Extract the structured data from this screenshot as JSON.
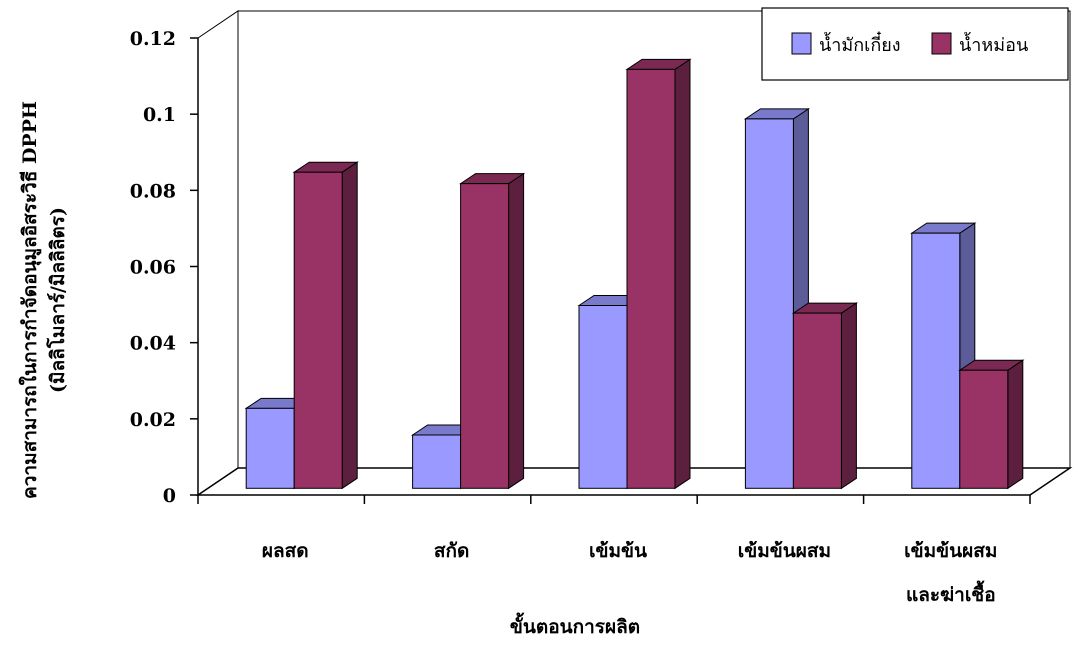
{
  "chart_data": {
    "type": "bar",
    "style": "3d-clustered-column",
    "title": "",
    "xlabel": "ขั้นตอนการผลิต",
    "ylabel": [
      "ความสามารถในการกำจัดอนุมูลอิสระวิธี DPPH",
      "(มิลลิโมลาร์/มิลลิลิตร)"
    ],
    "categories": [
      [
        "ผลสด"
      ],
      [
        "สกัด"
      ],
      [
        "เข้มข้น"
      ],
      [
        "เข้มข้นผสม"
      ],
      [
        "เข้มข้นผสม",
        "และฆ่าเชื้อ"
      ]
    ],
    "series": [
      {
        "name": "น้ำมักเกี๋ยง",
        "color": "#9999ff",
        "values": [
          0.021,
          0.014,
          0.048,
          0.097,
          0.067
        ]
      },
      {
        "name": "น้ำหม่อน",
        "color": "#993366",
        "values": [
          0.083,
          0.08,
          0.11,
          0.046,
          0.031
        ]
      }
    ],
    "ylim": [
      0,
      0.12
    ],
    "yticks": [
      "0",
      "0.02",
      "0.04",
      "0.06",
      "0.08",
      "0.1",
      "0.12"
    ],
    "grid": false,
    "legend": "top-right"
  }
}
